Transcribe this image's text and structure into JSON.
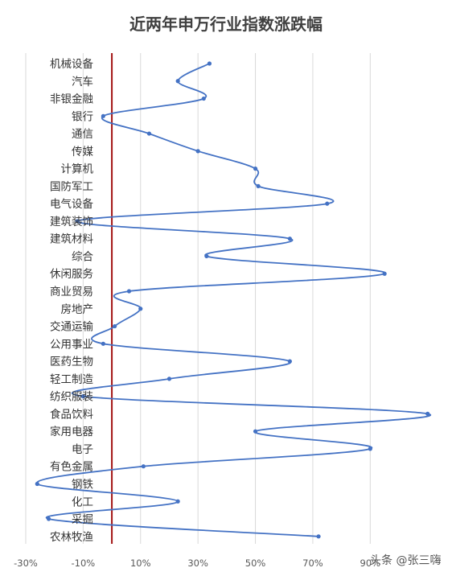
{
  "chart_data": {
    "type": "line",
    "title": "近两年申万行业指数涨跌幅",
    "categories": [
      "机械设备",
      "汽车",
      "非银金融",
      "银行",
      "通信",
      "传媒",
      "计算机",
      "国防军工",
      "电气设备",
      "建筑装饰",
      "建筑材料",
      "综合",
      "休闲服务",
      "商业贸易",
      "房地产",
      "交通运输",
      "公用事业",
      "医药生物",
      "轻工制造",
      "纺织服装",
      "食品饮料",
      "家用电器",
      "电子",
      "有色金属",
      "钢铁",
      "化工",
      "采掘",
      "农林牧渔"
    ],
    "values": [
      34,
      23,
      32,
      -3,
      13,
      30,
      50,
      51,
      75,
      -12,
      62,
      33,
      95,
      6,
      10,
      1,
      -3,
      62,
      20,
      -10,
      110,
      50,
      90,
      11,
      -26,
      23,
      -22,
      72
    ],
    "xlim": [
      -30,
      100
    ],
    "xticks": [
      -30,
      -10,
      10,
      30,
      50,
      70,
      90
    ],
    "xtick_labels": [
      "-30%",
      "-10%",
      "10%",
      "30%",
      "50%",
      "70%",
      "90%"
    ],
    "reference_line_x": 0,
    "grid": true,
    "colors": {
      "series": "#4472c4",
      "reference": "#a31515",
      "grid": "#d9d9d9"
    }
  },
  "watermark": "头条 @张三嗨"
}
